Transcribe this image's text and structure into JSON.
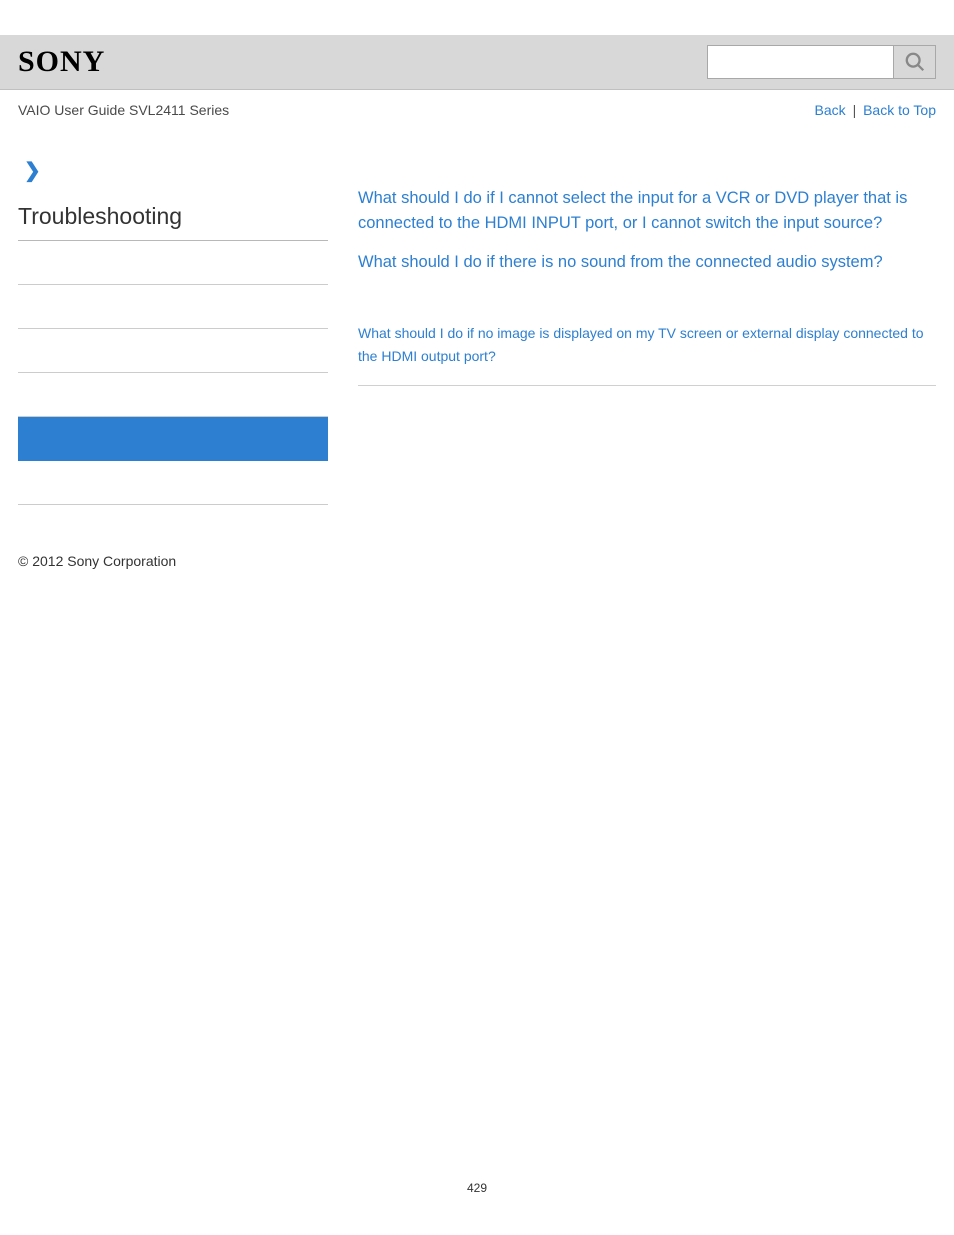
{
  "header": {
    "logo_text": "SONY",
    "search_placeholder": ""
  },
  "subheader": {
    "guide_title": "VAIO User Guide SVL2411 Series",
    "back_label": "Back",
    "back_to_top_label": "Back to Top",
    "separator": "|"
  },
  "sidebar": {
    "arrow_glyph": "❯",
    "title": "Troubleshooting",
    "items": [
      {
        "active": false
      },
      {
        "active": false
      },
      {
        "active": false
      },
      {
        "active": false
      },
      {
        "active": true
      },
      {
        "active": false
      }
    ]
  },
  "main": {
    "faq_links": [
      "What should I do if I cannot select the input for a VCR or DVD player that is connected to the HDMI INPUT port, or I cannot switch the input source?",
      "What should I do if there is no sound from the connected audio system?"
    ],
    "related_links": [
      "What should I do if no image is displayed on my TV screen or external display connected to the HDMI output port?"
    ]
  },
  "footer": {
    "copyright": "© 2012 Sony Corporation",
    "page_number": "429"
  },
  "colors": {
    "header_bg": "#d8d8d8",
    "link_color": "#2d7fd1",
    "active_sidebar": "#2d7fd1",
    "text_color": "#333333",
    "border_color": "#cccccc"
  }
}
